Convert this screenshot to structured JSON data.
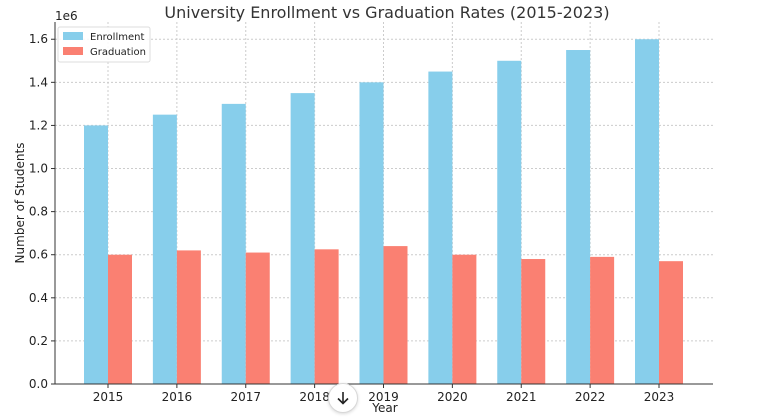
{
  "chart_data": {
    "type": "bar",
    "title": "University Enrollment vs Graduation Rates (2015-2023)",
    "xlabel": "Year",
    "ylabel": "Number of Students",
    "y_scale_label": "1e6",
    "ylim": [
      0,
      1.68
    ],
    "yticks": [
      "0.0",
      "0.2",
      "0.4",
      "0.6",
      "0.8",
      "1.0",
      "1.2",
      "1.4",
      "1.6"
    ],
    "grid": true,
    "legend_position": "top-left",
    "categories": [
      "2015",
      "2016",
      "2017",
      "2018",
      "2019",
      "2020",
      "2021",
      "2022",
      "2023"
    ],
    "series": [
      {
        "name": "Enrollment",
        "color": "#87ceeb",
        "values": [
          1.2,
          1.25,
          1.3,
          1.35,
          1.4,
          1.45,
          1.5,
          1.55,
          1.6
        ]
      },
      {
        "name": "Graduation",
        "color": "#fa8072",
        "values": [
          0.6,
          0.62,
          0.61,
          0.625,
          0.64,
          0.6,
          0.58,
          0.59,
          0.57
        ]
      }
    ]
  },
  "ui": {
    "scroll_icon": "arrow-down-icon"
  }
}
